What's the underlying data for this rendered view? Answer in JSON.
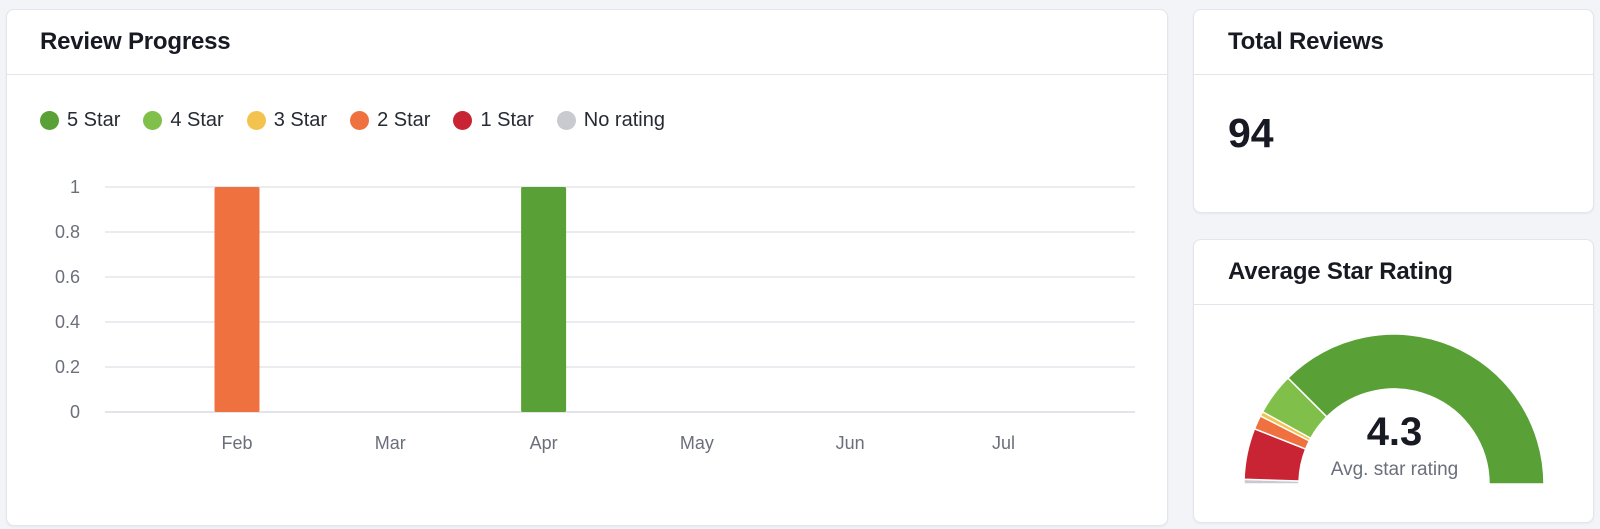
{
  "review_progress": {
    "title": "Review Progress",
    "legend": [
      {
        "label": "5 Star",
        "color": "#59a136"
      },
      {
        "label": "4 Star",
        "color": "#7fbf4a"
      },
      {
        "label": "3 Star",
        "color": "#f4c34f"
      },
      {
        "label": "2 Star",
        "color": "#ef7140"
      },
      {
        "label": "1 Star",
        "color": "#c92433"
      },
      {
        "label": "No rating",
        "color": "#c8cad0"
      }
    ]
  },
  "chart_data": {
    "type": "bar",
    "stacked": true,
    "categories": [
      "Feb",
      "Mar",
      "Apr",
      "May",
      "Jun",
      "Jul"
    ],
    "series": [
      {
        "name": "5 Star",
        "color": "#59a136",
        "values": [
          0,
          0,
          1,
          0,
          0,
          0
        ]
      },
      {
        "name": "4 Star",
        "color": "#7fbf4a",
        "values": [
          0,
          0,
          0,
          0,
          0,
          0
        ]
      },
      {
        "name": "3 Star",
        "color": "#f4c34f",
        "values": [
          0,
          0,
          0,
          0,
          0,
          0
        ]
      },
      {
        "name": "2 Star",
        "color": "#ef7140",
        "values": [
          1,
          0,
          0,
          0,
          0,
          0
        ]
      },
      {
        "name": "1 Star",
        "color": "#c92433",
        "values": [
          0,
          0,
          0,
          0,
          0,
          0
        ]
      },
      {
        "name": "No rating",
        "color": "#c8cad0",
        "values": [
          0,
          0,
          0,
          0,
          0,
          0
        ]
      }
    ],
    "y_ticks": [
      "1",
      "0.8",
      "0.6",
      "0.4",
      "0.2",
      "0"
    ],
    "ylim": [
      0,
      1
    ],
    "grid": true,
    "legend_position": "top-left"
  },
  "total_reviews": {
    "title": "Total Reviews",
    "value": "94"
  },
  "average_rating": {
    "title": "Average Star Rating",
    "value": "4.3",
    "label": "Avg. star rating",
    "gauge_segments": [
      {
        "name": "No rating",
        "fraction": 0.01,
        "color": "#c8cad0"
      },
      {
        "name": "1 Star",
        "fraction": 0.11,
        "color": "#c92433"
      },
      {
        "name": "2 Star",
        "fraction": 0.03,
        "color": "#ef7140"
      },
      {
        "name": "3 Star",
        "fraction": 0.01,
        "color": "#f4c34f"
      },
      {
        "name": "4 Star",
        "fraction": 0.09,
        "color": "#7fbf4a"
      },
      {
        "name": "5 Star",
        "fraction": 0.75,
        "color": "#59a136"
      }
    ]
  }
}
